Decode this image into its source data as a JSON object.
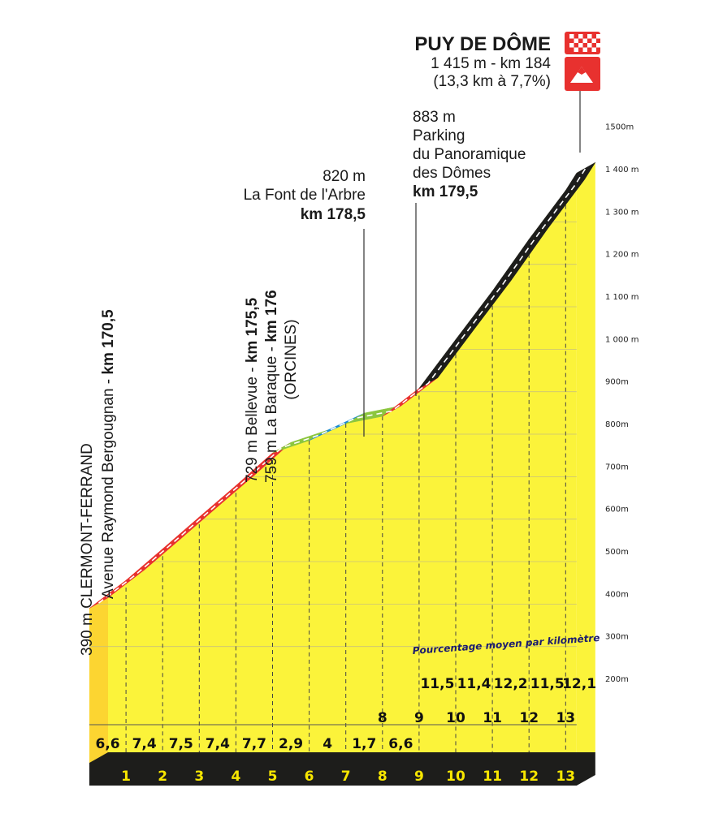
{
  "chart_data": {
    "type": "area",
    "title": "PUY DE DÔME",
    "summit": {
      "line1": "1 415 m - km 184",
      "line2": "(13,3 km à 7,7%)"
    },
    "ylim": [
      200,
      1500
    ],
    "y_ticks": [
      "200m",
      "300m",
      "400m",
      "500m",
      "600m",
      "700m",
      "800m",
      "900m",
      "1 000 m",
      "1 100 m",
      "1 200 m",
      "1 300 m",
      "1 400 m",
      "1500m"
    ],
    "x_ticks": [
      "1",
      "2",
      "3",
      "4",
      "5",
      "6",
      "7",
      "8",
      "9",
      "10",
      "11",
      "12",
      "13"
    ],
    "km_per_km_label": "Pourcentage moyen par kilomètre",
    "segments": [
      {
        "from_km": 0,
        "to_km": 1,
        "grade": "6,6",
        "category": "red"
      },
      {
        "from_km": 1,
        "to_km": 2,
        "grade": "7,4",
        "category": "red"
      },
      {
        "from_km": 2,
        "to_km": 3,
        "grade": "7,5",
        "category": "red"
      },
      {
        "from_km": 3,
        "to_km": 4,
        "grade": "7,4",
        "category": "red"
      },
      {
        "from_km": 4,
        "to_km": 5,
        "grade": "7,7",
        "category": "red"
      },
      {
        "from_km": 5,
        "to_km": 6,
        "grade": "2,9",
        "category": "green"
      },
      {
        "from_km": 6,
        "to_km": 7,
        "grade": "4",
        "category": "blue"
      },
      {
        "from_km": 7,
        "to_km": 8,
        "grade": "1,7",
        "category": "green"
      },
      {
        "from_km": 8,
        "to_km": 9,
        "grade": "6,6",
        "category": "red"
      },
      {
        "from_km": 9,
        "to_km": 10,
        "grade": "11,5",
        "category": "black"
      },
      {
        "from_km": 10,
        "to_km": 11,
        "grade": "11,4",
        "category": "black"
      },
      {
        "from_km": 11,
        "to_km": 12,
        "grade": "12,2",
        "category": "black"
      },
      {
        "from_km": 12,
        "to_km": 13,
        "grade": "11,5",
        "category": "black"
      },
      {
        "from_km": 13,
        "to_km": 13.3,
        "grade": "12,1",
        "category": "black"
      }
    ],
    "profile": [
      {
        "km": 0,
        "alt": 390
      },
      {
        "km": 1,
        "alt": 456
      },
      {
        "km": 2,
        "alt": 530
      },
      {
        "km": 3,
        "alt": 605
      },
      {
        "km": 4,
        "alt": 679
      },
      {
        "km": 5,
        "alt": 756
      },
      {
        "km": 6,
        "alt": 785
      },
      {
        "km": 7,
        "alt": 825
      },
      {
        "km": 8,
        "alt": 842
      },
      {
        "km": 9,
        "alt": 908
      },
      {
        "km": 10,
        "alt": 1023
      },
      {
        "km": 11,
        "alt": 1137
      },
      {
        "km": 12,
        "alt": 1259
      },
      {
        "km": 13,
        "alt": 1374
      },
      {
        "km": 13.3,
        "alt": 1415
      }
    ],
    "annotations": [
      {
        "id": "start",
        "line1": "390 m CLERMONT-FERRAND",
        "line2": "Avenue Raymond Bergougnan - ",
        "line2_bold": "km 170,5"
      },
      {
        "id": "bellevue",
        "line1_prefix": "729 m Bellevue - ",
        "line1_bold": "km 175,5",
        "line2_prefix": "759 m La Baraque - ",
        "line2_bold": "km 176",
        "line3": "(ORCINES)"
      },
      {
        "id": "font-arbre",
        "line1": "820 m",
        "line2": "La Font de l'Arbre",
        "line3_bold": "km 178,5"
      },
      {
        "id": "parking",
        "line1": "883 m",
        "line2": "Parking",
        "line3": "du Panoramique",
        "line4": "des Dômes",
        "line5_bold": "km 179,5"
      }
    ],
    "colors": {
      "fill": "#fbf33a",
      "fill_start": "#fcd531",
      "red": "#e8312f",
      "green": "#8cc63e",
      "blue": "#1b8bd3",
      "black": "#1d1d1b",
      "base": "#1d1d1b",
      "km_text": "#f7e600"
    }
  }
}
